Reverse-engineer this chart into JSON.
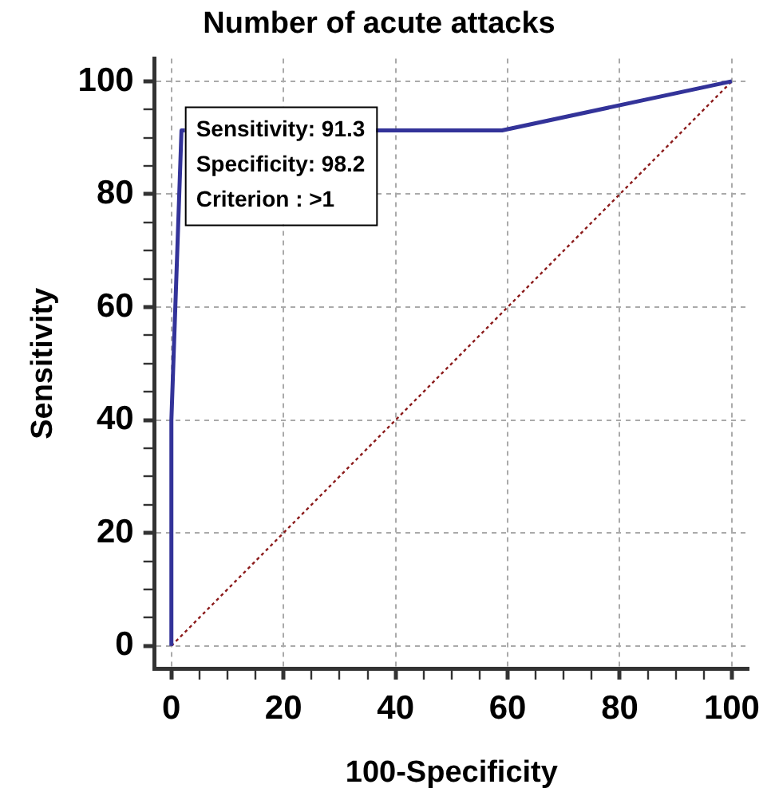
{
  "chart_data": {
    "type": "line",
    "title": "Number of acute attacks",
    "xlabel": "100-Specificity",
    "ylabel": "Sensitivity",
    "series": [
      {
        "x": [
          0,
          0,
          1.8,
          59,
          100
        ],
        "values": [
          0,
          40,
          91.3,
          91.3,
          100
        ],
        "color": "#333399",
        "line_style": "solid"
      },
      {
        "x": [
          0,
          100
        ],
        "values": [
          0,
          100
        ],
        "color": "#8b1a1a",
        "line_style": "dotted"
      }
    ],
    "annotations": [
      "Sensitivity: 91.3",
      "Specificity: 98.2",
      "Criterion : >1"
    ],
    "xlim": [
      -3,
      103
    ],
    "ylim": [
      -4,
      104
    ],
    "xticks": [
      0,
      {
        "value": 5,
        "label": null
      },
      {
        "value": 10,
        "label": null
      },
      {
        "value": 15,
        "label": null
      },
      20,
      {
        "value": 25,
        "label": null
      },
      {
        "value": 30,
        "label": null
      },
      {
        "value": 35,
        "label": null
      },
      40,
      {
        "value": 45,
        "label": null
      },
      {
        "value": 50,
        "label": null
      },
      {
        "value": 55,
        "label": null
      },
      60,
      {
        "value": 65,
        "label": null
      },
      {
        "value": 70,
        "label": null
      },
      {
        "value": 75,
        "label": null
      },
      80,
      {
        "value": 85,
        "label": null
      },
      {
        "value": 90,
        "label": null
      },
      {
        "value": 95,
        "label": null
      },
      100
    ],
    "yticks": [
      0,
      {
        "value": 5,
        "label": null
      },
      {
        "value": 10,
        "label": null
      },
      {
        "value": 15,
        "label": null
      },
      20,
      {
        "value": 25,
        "label": null
      },
      {
        "value": 30,
        "label": null
      },
      {
        "value": 35,
        "label": null
      },
      40,
      {
        "value": 45,
        "label": null
      },
      {
        "value": 50,
        "label": null
      },
      {
        "value": 55,
        "label": null
      },
      60,
      {
        "value": 65,
        "label": null
      },
      {
        "value": 70,
        "label": null
      },
      {
        "value": 75,
        "label": null
      },
      80,
      {
        "value": 85,
        "label": null
      },
      {
        "value": 90,
        "label": null
      },
      {
        "value": 95,
        "label": null
      },
      100
    ],
    "grid": true,
    "marker": "none",
    "legend": false
  }
}
